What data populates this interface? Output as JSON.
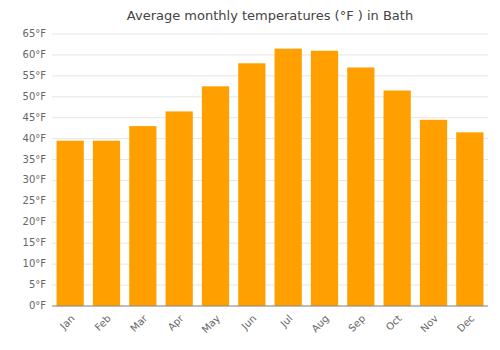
{
  "chart_data": {
    "type": "bar",
    "title": "Average monthly temperatures (°F ) in Bath",
    "categories": [
      "Jan",
      "Feb",
      "Mar",
      "Apr",
      "May",
      "Jun",
      "Jul",
      "Aug",
      "Sep",
      "Oct",
      "Nov",
      "Dec"
    ],
    "values": [
      39.5,
      39.5,
      43.0,
      46.5,
      52.5,
      58.0,
      61.5,
      61.0,
      57.0,
      51.5,
      44.5,
      41.5
    ],
    "color": "#FFA000",
    "ylim": [
      0,
      65
    ],
    "yticks": [
      {
        "value": 0,
        "label": "0°F"
      },
      {
        "value": 5,
        "label": "5°F"
      },
      {
        "value": 10,
        "label": "10°F"
      },
      {
        "value": 15,
        "label": "15°F"
      },
      {
        "value": 20,
        "label": "20°F"
      },
      {
        "value": 25,
        "label": "25°F"
      },
      {
        "value": 30,
        "label": "30°F"
      },
      {
        "value": 35,
        "label": "35°F"
      },
      {
        "value": 40,
        "label": "40°F"
      },
      {
        "value": 45,
        "label": "45°F"
      },
      {
        "value": 50,
        "label": "50°F"
      },
      {
        "value": 55,
        "label": "55°F"
      },
      {
        "value": 60,
        "label": "60°F"
      },
      {
        "value": 65,
        "label": "65°F"
      }
    ],
    "grid": true
  }
}
